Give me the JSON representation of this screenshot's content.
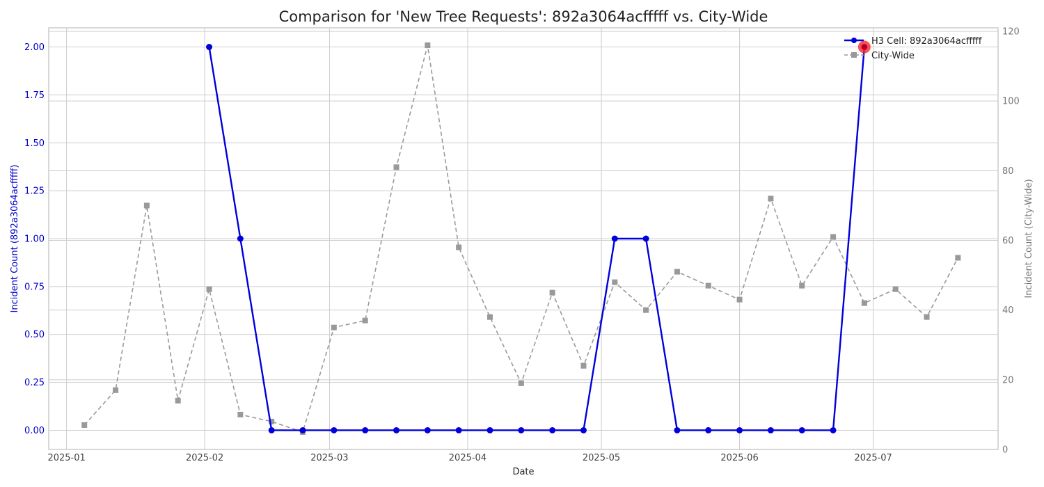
{
  "chart_data": {
    "type": "line",
    "title": "Comparison for 'New Tree Requests': 892a3064acfffff vs. City-Wide",
    "xlabel": "Date",
    "ylabel_left": "Incident Count (892a3064acfffff)",
    "ylabel_right": "Incident Count (City-Wide)",
    "x_ticks": [
      "2025-01",
      "2025-02",
      "2025-03",
      "2025-04",
      "2025-05",
      "2025-06",
      "2025-07"
    ],
    "y_left_ticks": [
      "0.00",
      "0.25",
      "0.50",
      "0.75",
      "1.00",
      "1.25",
      "1.50",
      "1.75",
      "2.00"
    ],
    "y_right_ticks": [
      "0",
      "20",
      "40",
      "60",
      "80",
      "100",
      "120"
    ],
    "ylim_left": [
      -0.1,
      2.1
    ],
    "ylim_right": [
      0,
      121
    ],
    "grid": true,
    "legend_position": "top-right",
    "colors": {
      "cell": "#0000dd",
      "city": "#999999",
      "highlight": "#ff2222",
      "left_axis": "#0000cc",
      "right_axis": "#777777"
    },
    "series": [
      {
        "name": "H3 Cell: 892a3064acfffff",
        "axis": "left",
        "style": "solid-circle",
        "x": [
          "2025-02-02",
          "2025-02-09",
          "2025-02-16",
          "2025-02-23",
          "2025-03-02",
          "2025-03-09",
          "2025-03-16",
          "2025-03-23",
          "2025-03-30",
          "2025-04-06",
          "2025-04-13",
          "2025-04-20",
          "2025-04-27",
          "2025-05-04",
          "2025-05-11",
          "2025-05-18",
          "2025-05-25",
          "2025-06-01",
          "2025-06-08",
          "2025-06-15",
          "2025-06-22",
          "2025-06-29"
        ],
        "values": [
          2,
          1,
          0,
          0,
          0,
          0,
          0,
          0,
          0,
          0,
          0,
          0,
          0,
          1,
          1,
          0,
          0,
          0,
          0,
          0,
          0,
          2
        ]
      },
      {
        "name": "City-Wide",
        "axis": "right",
        "style": "dashed-square",
        "x": [
          "2025-01-05",
          "2025-01-12",
          "2025-01-19",
          "2025-01-26",
          "2025-02-02",
          "2025-02-09",
          "2025-02-16",
          "2025-02-23",
          "2025-03-02",
          "2025-03-09",
          "2025-03-16",
          "2025-03-23",
          "2025-03-30",
          "2025-04-06",
          "2025-04-13",
          "2025-04-20",
          "2025-04-27",
          "2025-05-04",
          "2025-05-11",
          "2025-05-18",
          "2025-05-25",
          "2025-06-01",
          "2025-06-08",
          "2025-06-15",
          "2025-06-22",
          "2025-06-29",
          "2025-07-06",
          "2025-07-13",
          "2025-07-20"
        ],
        "values": [
          7,
          17,
          70,
          14,
          46,
          10,
          8,
          5,
          35,
          37,
          81,
          116,
          58,
          38,
          19,
          45,
          24,
          48,
          40,
          51,
          47,
          43,
          72,
          47,
          61,
          42,
          46,
          38,
          55
        ]
      }
    ],
    "highlight_point": {
      "series": "H3 Cell: 892a3064acfffff",
      "x": "2025-06-29",
      "value": 2
    }
  }
}
